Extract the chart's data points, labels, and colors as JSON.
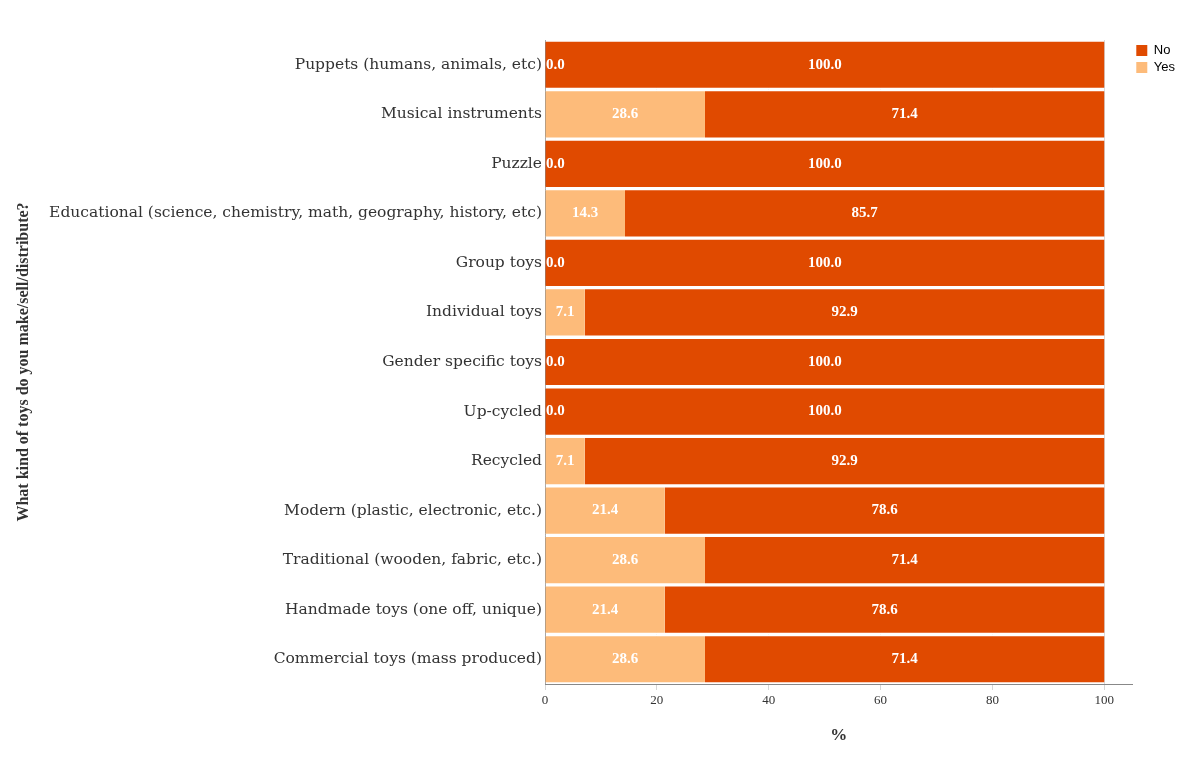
{
  "chart_data": {
    "type": "bar",
    "orientation": "horizontal",
    "stacked": true,
    "categories": [
      "Puppets (humans, animals, etc)",
      "Musical instruments",
      "Puzzle",
      "Educational (science, chemistry, math, geography, history, etc)",
      "Group toys",
      "Individual toys",
      "Gender specific toys",
      "Up-cycled",
      "Recycled",
      "Modern (plastic, electronic, etc.)",
      "Traditional (wooden, fabric, etc.)",
      "Handmade toys (one off, unique)",
      "Commercial toys (mass produced)"
    ],
    "series": [
      {
        "name": "Yes",
        "color": "#fdbb7a",
        "values": [
          0,
          28.6,
          0,
          14.3,
          0,
          7.1,
          0,
          0,
          7.1,
          21.4,
          28.6,
          21.4,
          28.6
        ],
        "value_labels": [
          "0.0",
          "28.6",
          "0.0",
          "14.3",
          "0.0",
          "7.1",
          "0.0",
          "0.0",
          "7.1",
          "21.4",
          "28.6",
          "21.4",
          "28.6"
        ]
      },
      {
        "name": "No",
        "color": "#e04a00",
        "values": [
          100,
          71.4,
          100,
          85.7,
          100,
          92.9,
          100,
          100,
          92.9,
          78.6,
          71.4,
          78.6,
          71.4
        ],
        "value_labels": [
          "100.0",
          "71.4",
          "100.0",
          "85.7",
          "100.0",
          "92.9",
          "100.0",
          "100.0",
          "92.9",
          "78.6",
          "71.4",
          "78.6",
          "71.4"
        ]
      }
    ],
    "xlim": [
      0,
      105
    ],
    "xticks": [
      0,
      20,
      40,
      60,
      80,
      100
    ],
    "xlabel": "%",
    "ylabel": "What kind of toys do you make/sell/distribute?",
    "grid": "x",
    "legend": "top right"
  }
}
